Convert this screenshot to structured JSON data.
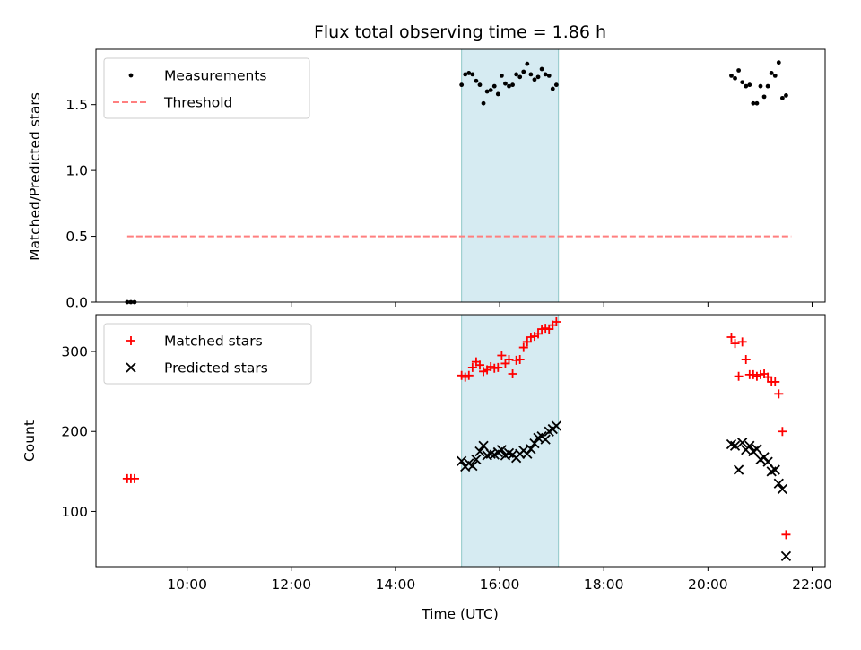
{
  "chart_data": [
    {
      "type": "scatter",
      "title": "Flux total observing time = 1.86 h",
      "xlabel": "",
      "ylabel": "Matched/Predicted stars",
      "xlim": [
        8.25,
        22.25
      ],
      "ylim": [
        0.0,
        1.92
      ],
      "yticks": [
        0.0,
        0.5,
        1.0,
        1.5
      ],
      "yticklabels": [
        "0.0",
        "0.5",
        "1.0",
        "1.5"
      ],
      "xticks": [
        10,
        12,
        14,
        16,
        18,
        20,
        22
      ],
      "xticklabels": [],
      "shaded_region": [
        15.27,
        17.13
      ],
      "shade_color": "#add8e6",
      "legend": "top-left",
      "series": [
        {
          "name": "Measurements",
          "marker": "dot",
          "color": "#000000",
          "points": [
            [
              8.85,
              0.0
            ],
            [
              8.92,
              0.0
            ],
            [
              8.99,
              0.0
            ],
            [
              15.27,
              1.65
            ],
            [
              15.34,
              1.73
            ],
            [
              15.41,
              1.74
            ],
            [
              15.48,
              1.73
            ],
            [
              15.55,
              1.68
            ],
            [
              15.62,
              1.65
            ],
            [
              15.69,
              1.51
            ],
            [
              15.76,
              1.6
            ],
            [
              15.83,
              1.61
            ],
            [
              15.9,
              1.64
            ],
            [
              15.97,
              1.58
            ],
            [
              16.04,
              1.72
            ],
            [
              16.11,
              1.66
            ],
            [
              16.18,
              1.64
            ],
            [
              16.25,
              1.65
            ],
            [
              16.32,
              1.73
            ],
            [
              16.39,
              1.71
            ],
            [
              16.46,
              1.75
            ],
            [
              16.53,
              1.81
            ],
            [
              16.6,
              1.73
            ],
            [
              16.67,
              1.69
            ],
            [
              16.74,
              1.71
            ],
            [
              16.81,
              1.77
            ],
            [
              16.88,
              1.73
            ],
            [
              16.95,
              1.72
            ],
            [
              17.02,
              1.62
            ],
            [
              17.09,
              1.65
            ],
            [
              20.45,
              1.72
            ],
            [
              20.52,
              1.7
            ],
            [
              20.59,
              1.76
            ],
            [
              20.66,
              1.67
            ],
            [
              20.73,
              1.64
            ],
            [
              20.8,
              1.65
            ],
            [
              20.87,
              1.51
            ],
            [
              20.94,
              1.51
            ],
            [
              21.01,
              1.64
            ],
            [
              21.08,
              1.56
            ],
            [
              21.15,
              1.64
            ],
            [
              21.22,
              1.74
            ],
            [
              21.29,
              1.72
            ],
            [
              21.36,
              1.82
            ],
            [
              21.43,
              1.55
            ],
            [
              21.5,
              1.57
            ]
          ]
        },
        {
          "name": "Threshold",
          "type": "line",
          "style": "dashed",
          "color": "#ff7f7f",
          "x": [
            8.85,
            21.6
          ],
          "y": [
            0.5,
            0.5
          ]
        }
      ]
    },
    {
      "type": "scatter",
      "title": "",
      "xlabel": "Time (UTC)",
      "ylabel": "Count",
      "xlim": [
        8.25,
        22.25
      ],
      "ylim": [
        31,
        346
      ],
      "yticks": [
        100,
        200,
        300
      ],
      "yticklabels": [
        "100",
        "200",
        "300"
      ],
      "xticks": [
        10,
        12,
        14,
        16,
        18,
        20,
        22
      ],
      "xticklabels": [
        "10:00",
        "12:00",
        "14:00",
        "16:00",
        "18:00",
        "20:00",
        "22:00"
      ],
      "shaded_region": [
        15.27,
        17.13
      ],
      "shade_color": "#add8e6",
      "legend": "top-left",
      "series": [
        {
          "name": "Matched stars",
          "marker": "plus",
          "color": "#ff0000",
          "points": [
            [
              8.85,
              141
            ],
            [
              8.92,
              141
            ],
            [
              8.99,
              141
            ],
            [
              15.27,
              270
            ],
            [
              15.34,
              268
            ],
            [
              15.41,
              270
            ],
            [
              15.48,
              280
            ],
            [
              15.55,
              287
            ],
            [
              15.62,
              283
            ],
            [
              15.69,
              275
            ],
            [
              15.76,
              277
            ],
            [
              15.83,
              281
            ],
            [
              15.9,
              279
            ],
            [
              15.97,
              280
            ],
            [
              16.04,
              295
            ],
            [
              16.11,
              285
            ],
            [
              16.18,
              290
            ],
            [
              16.25,
              272
            ],
            [
              16.32,
              289
            ],
            [
              16.39,
              290
            ],
            [
              16.46,
              305
            ],
            [
              16.53,
              312
            ],
            [
              16.6,
              318
            ],
            [
              16.67,
              319
            ],
            [
              16.74,
              322
            ],
            [
              16.81,
              328
            ],
            [
              16.88,
              329
            ],
            [
              16.95,
              328
            ],
            [
              17.02,
              333
            ],
            [
              17.09,
              337
            ],
            [
              20.45,
              318
            ],
            [
              20.52,
              310
            ],
            [
              20.59,
              269
            ],
            [
              20.66,
              312
            ],
            [
              20.73,
              290
            ],
            [
              20.8,
              271
            ],
            [
              20.87,
              271
            ],
            [
              20.94,
              269
            ],
            [
              21.01,
              271
            ],
            [
              21.08,
              272
            ],
            [
              21.15,
              268
            ],
            [
              21.22,
              262
            ],
            [
              21.29,
              262
            ],
            [
              21.36,
              247
            ],
            [
              21.43,
              200
            ],
            [
              21.5,
              71
            ]
          ]
        },
        {
          "name": "Predicted stars",
          "marker": "x",
          "color": "#000000",
          "points": [
            [
              15.27,
              163
            ],
            [
              15.34,
              156
            ],
            [
              15.41,
              160
            ],
            [
              15.48,
              157
            ],
            [
              15.55,
              165
            ],
            [
              15.62,
              175
            ],
            [
              15.69,
              182
            ],
            [
              15.76,
              170
            ],
            [
              15.83,
              172
            ],
            [
              15.9,
              171
            ],
            [
              15.97,
              174
            ],
            [
              16.04,
              177
            ],
            [
              16.11,
              170
            ],
            [
              16.18,
              173
            ],
            [
              16.25,
              171
            ],
            [
              16.32,
              167
            ],
            [
              16.39,
              172
            ],
            [
              16.46,
              176
            ],
            [
              16.53,
              172
            ],
            [
              16.6,
              178
            ],
            [
              16.67,
              185
            ],
            [
              16.74,
              192
            ],
            [
              16.81,
              194
            ],
            [
              16.88,
              190
            ],
            [
              16.95,
              200
            ],
            [
              17.02,
              203
            ],
            [
              17.09,
              207
            ],
            [
              20.45,
              184
            ],
            [
              20.52,
              182
            ],
            [
              20.59,
              152
            ],
            [
              20.66,
              186
            ],
            [
              20.73,
              177
            ],
            [
              20.8,
              182
            ],
            [
              20.87,
              175
            ],
            [
              20.94,
              178
            ],
            [
              21.01,
              165
            ],
            [
              21.08,
              168
            ],
            [
              21.15,
              162
            ],
            [
              21.22,
              150
            ],
            [
              21.29,
              152
            ],
            [
              21.36,
              135
            ],
            [
              21.43,
              128
            ],
            [
              21.5,
              44
            ]
          ]
        }
      ]
    }
  ]
}
